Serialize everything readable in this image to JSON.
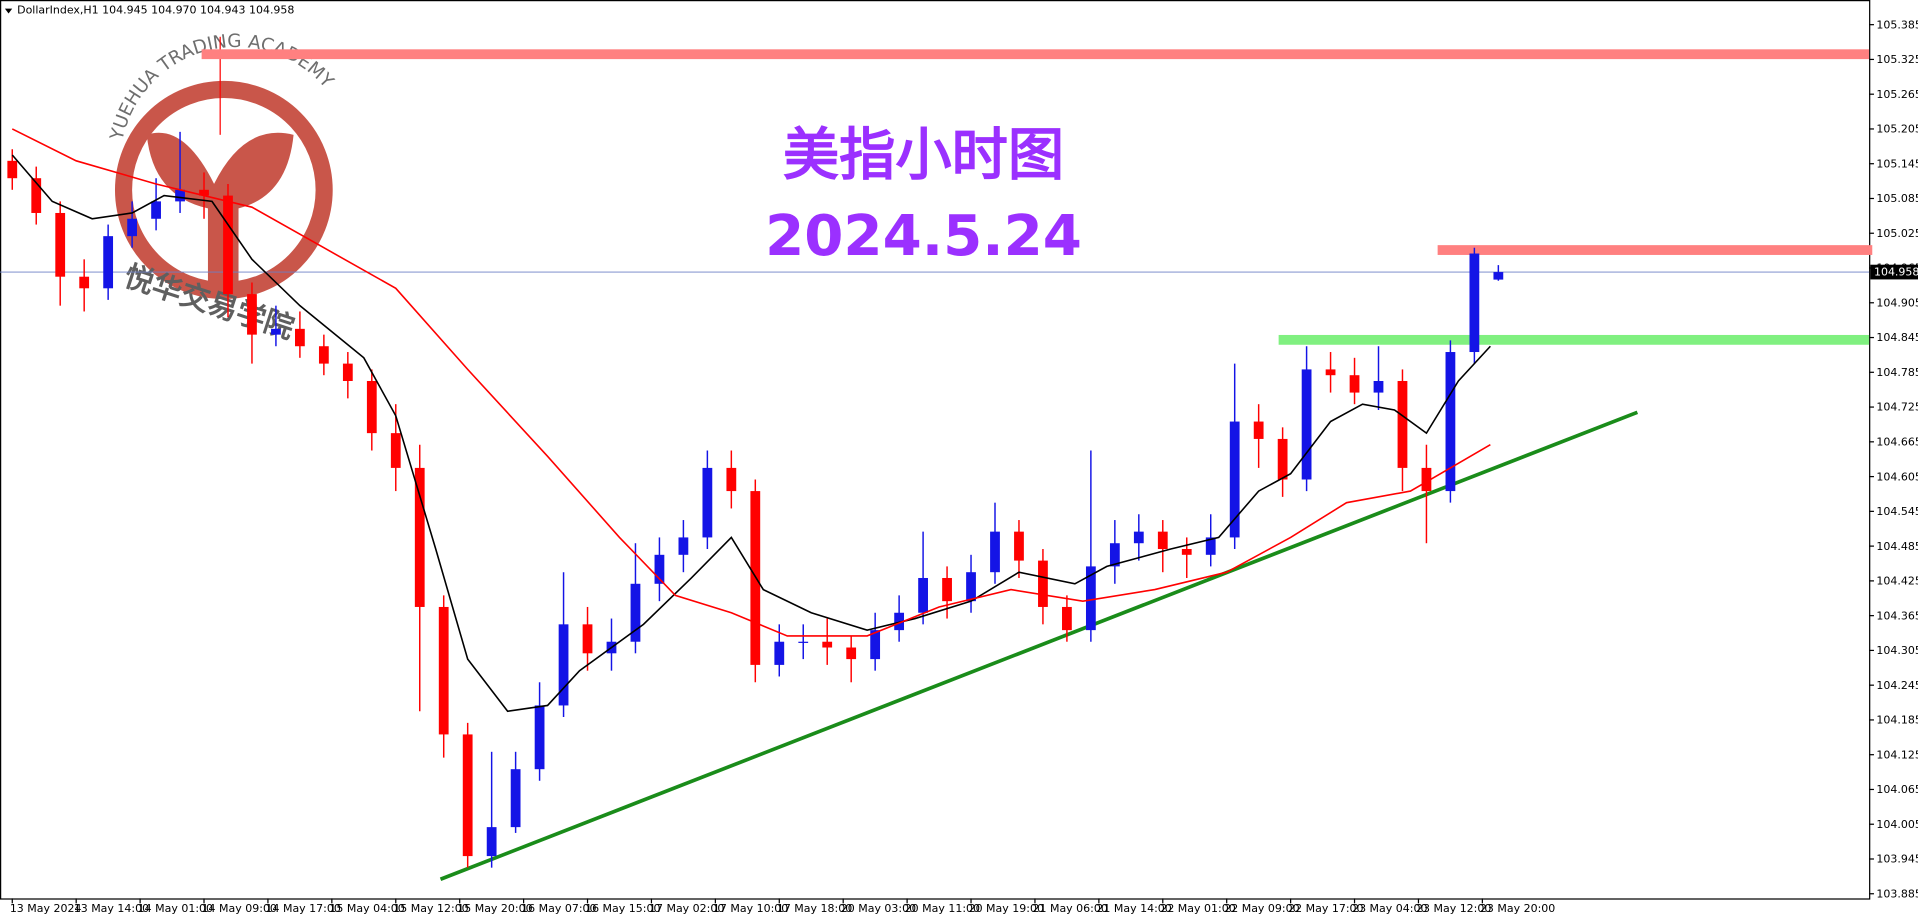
{
  "header": "DollarIndex,H1  104.945 104.970 104.943 104.958",
  "chart_data": {
    "type": "candlestick",
    "title": "美指小时图",
    "subtitle": "2024.5.24",
    "watermark": {
      "text_en": "YUEHUA TRADING ACADEMY",
      "text_cn": "悦华交易学院"
    },
    "ylim": [
      103.877,
      105.417
    ],
    "xlim": [
      -0.77,
      232.4
    ],
    "yticks": [
      105.385,
      105.325,
      105.265,
      105.205,
      105.145,
      105.085,
      105.025,
      104.965,
      104.905,
      104.845,
      104.785,
      104.725,
      104.665,
      104.605,
      104.545,
      104.485,
      104.425,
      104.365,
      104.305,
      104.245,
      104.185,
      104.125,
      104.065,
      104.005,
      103.945,
      103.885
    ],
    "xticks": [
      {
        "value": 0,
        "label": "13 May 2024"
      },
      {
        "value": 8,
        "label": "13 May 14:00"
      },
      {
        "value": 16,
        "label": "14 May 01:00"
      },
      {
        "value": 24,
        "label": "14 May 09:00"
      },
      {
        "value": 32,
        "label": "14 May 17:00"
      },
      {
        "value": 40,
        "label": "15 May 04:00"
      },
      {
        "value": 48,
        "label": "15 May 12:00"
      },
      {
        "value": 56,
        "label": "15 May 20:00"
      },
      {
        "value": 64,
        "label": "16 May 07:00"
      },
      {
        "value": 72,
        "label": "16 May 15:00"
      },
      {
        "value": 80,
        "label": "17 May 02:00"
      },
      {
        "value": 88,
        "label": "17 May 10:00"
      },
      {
        "value": 96,
        "label": "17 May 18:00"
      },
      {
        "value": 104,
        "label": "20 May 03:00"
      },
      {
        "value": 112,
        "label": "20 May 11:00"
      },
      {
        "value": 120,
        "label": "20 May 19:00"
      },
      {
        "value": 128,
        "label": "21 May 06:00"
      },
      {
        "value": 136,
        "label": "21 May 14:00"
      },
      {
        "value": 144,
        "label": "22 May 01:00"
      },
      {
        "value": 152,
        "label": "22 May 09:00"
      },
      {
        "value": 160,
        "label": "22 May 17:00"
      },
      {
        "value": 168,
        "label": "23 May 04:00"
      },
      {
        "value": 176,
        "label": "23 May 12:00"
      },
      {
        "value": 184,
        "label": "23 May 20:00"
      }
    ],
    "up_color": "#1414e6",
    "down_color": "#ff0000",
    "x": [
      0,
      3,
      6,
      9,
      12,
      15,
      18,
      21,
      24,
      27,
      30,
      33,
      36,
      39,
      42,
      45,
      48,
      51,
      54,
      57,
      60,
      63,
      66,
      69,
      72,
      75,
      78,
      81,
      84,
      87,
      90,
      93,
      96,
      99,
      102,
      105,
      108,
      111,
      114,
      117,
      120,
      123,
      126,
      129,
      132,
      135,
      138,
      141,
      144,
      147,
      150,
      153,
      156,
      159,
      162,
      165,
      168,
      171,
      174,
      177,
      180,
      183,
      186
    ],
    "open": [
      105.15,
      105.12,
      105.06,
      104.95,
      104.93,
      105.02,
      105.05,
      105.08,
      105.1,
      105.09,
      104.92,
      104.85,
      104.86,
      104.83,
      104.8,
      104.77,
      104.68,
      104.62,
      104.38,
      104.16,
      103.95,
      104.0,
      104.1,
      104.21,
      104.35,
      104.3,
      104.32,
      104.42,
      104.47,
      104.5,
      104.62,
      104.58,
      104.28,
      104.32,
      104.32,
      104.31,
      104.29,
      104.34,
      104.37,
      104.43,
      104.39,
      104.44,
      104.51,
      104.46,
      104.38,
      104.34,
      104.45,
      104.49,
      104.51,
      104.48,
      104.47,
      104.5,
      104.7,
      104.67,
      104.6,
      104.79,
      104.78,
      104.75,
      104.77,
      104.62,
      104.58,
      104.82,
      104.945
    ],
    "high": [
      105.17,
      105.14,
      105.08,
      104.98,
      105.04,
      105.08,
      105.12,
      105.2,
      105.13,
      105.11,
      104.94,
      104.9,
      104.89,
      104.85,
      104.82,
      104.79,
      104.73,
      104.66,
      104.4,
      104.18,
      104.13,
      104.13,
      104.25,
      104.44,
      104.38,
      104.36,
      104.49,
      104.5,
      104.53,
      104.65,
      104.65,
      104.6,
      104.35,
      104.35,
      104.36,
      104.33,
      104.37,
      104.4,
      104.51,
      104.45,
      104.47,
      104.56,
      104.53,
      104.48,
      104.4,
      104.65,
      104.53,
      104.54,
      104.53,
      104.5,
      104.54,
      104.8,
      104.73,
      104.69,
      104.83,
      104.82,
      104.81,
      104.83,
      104.79,
      104.66,
      104.84,
      105.0,
      104.97
    ],
    "low": [
      105.1,
      105.04,
      104.9,
      104.89,
      104.91,
      105.0,
      105.03,
      105.06,
      105.05,
      104.88,
      104.8,
      104.83,
      104.81,
      104.78,
      104.74,
      104.65,
      104.58,
      104.2,
      104.12,
      103.93,
      103.93,
      103.99,
      104.08,
      104.19,
      104.27,
      104.27,
      104.3,
      104.39,
      104.44,
      104.48,
      104.55,
      104.25,
      104.26,
      104.29,
      104.28,
      104.25,
      104.27,
      104.32,
      104.35,
      104.36,
      104.37,
      104.42,
      104.43,
      104.35,
      104.32,
      104.32,
      104.42,
      104.46,
      104.44,
      104.43,
      104.45,
      104.48,
      104.62,
      104.57,
      104.58,
      104.75,
      104.73,
      104.72,
      104.58,
      104.49,
      104.56,
      104.8,
      104.943
    ],
    "close": [
      105.12,
      105.06,
      104.95,
      104.93,
      105.02,
      105.05,
      105.08,
      105.1,
      105.09,
      104.92,
      104.85,
      104.86,
      104.83,
      104.8,
      104.77,
      104.68,
      104.62,
      104.38,
      104.16,
      103.95,
      104.0,
      104.1,
      104.21,
      104.35,
      104.3,
      104.32,
      104.42,
      104.47,
      104.5,
      104.62,
      104.58,
      104.28,
      104.32,
      104.32,
      104.31,
      104.29,
      104.34,
      104.37,
      104.43,
      104.39,
      104.44,
      104.51,
      104.46,
      104.38,
      104.34,
      104.45,
      104.49,
      104.51,
      104.48,
      104.47,
      104.5,
      104.7,
      104.67,
      104.6,
      104.79,
      104.78,
      104.75,
      104.77,
      104.62,
      104.58,
      104.82,
      104.99,
      104.958
    ],
    "overlays": [
      {
        "color": "#000000",
        "x": [
          0,
          5,
          10,
          15,
          19,
          25,
          30,
          36,
          44,
          48,
          53,
          57,
          62,
          67,
          71,
          79,
          85,
          90,
          94,
          100,
          107,
          113,
          120,
          126,
          133,
          137,
          145,
          151,
          156,
          160,
          165,
          169,
          173,
          177,
          181,
          185
        ],
        "values": [
          105.16,
          105.08,
          105.05,
          105.06,
          105.09,
          105.08,
          104.98,
          104.9,
          104.81,
          104.71,
          104.48,
          104.29,
          104.2,
          104.21,
          104.27,
          104.35,
          104.43,
          104.5,
          104.41,
          104.37,
          104.34,
          104.36,
          104.39,
          104.44,
          104.42,
          104.45,
          104.48,
          104.5,
          104.58,
          104.61,
          104.7,
          104.73,
          104.72,
          104.68,
          104.77,
          104.83
        ]
      },
      {
        "color": "#ff0000",
        "x": [
          0,
          8,
          18,
          30,
          39,
          48,
          57,
          67,
          76,
          83,
          90,
          97,
          107,
          116,
          125,
          134,
          143,
          152,
          160,
          167,
          175,
          180,
          185
        ],
        "values": [
          105.205,
          105.15,
          105.11,
          105.07,
          105.0,
          104.93,
          104.79,
          104.64,
          104.5,
          104.4,
          104.37,
          104.33,
          104.33,
          104.38,
          104.41,
          104.39,
          104.41,
          104.44,
          104.5,
          104.56,
          104.58,
          104.62,
          104.66
        ]
      }
    ],
    "levels": [
      {
        "color": "#ff8080",
        "value": 105.334,
        "x": [
          23.7,
          232.4
        ]
      },
      {
        "color": "#ff8080",
        "value": 104.996,
        "x": [
          178.4,
          232.8
        ]
      },
      {
        "color": "#80f080",
        "value": 104.841,
        "x": [
          158.5,
          232.4
        ]
      }
    ],
    "trendline": {
      "color": "#1a8c1a",
      "x": [
        53.6,
        203.4
      ],
      "values": [
        103.91,
        104.716
      ]
    },
    "last_price": 104.958
  }
}
